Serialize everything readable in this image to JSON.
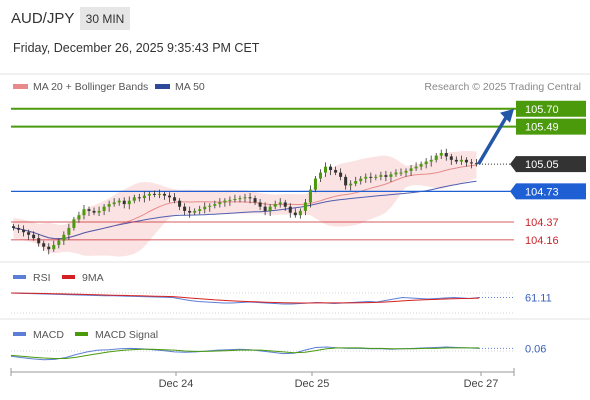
{
  "header": {
    "pair": "AUD/JPY",
    "timeframe": "30 MIN",
    "datetime": "Friday, December 26, 2025 9:35:43 PM CET"
  },
  "legend": {
    "ma20": "MA 20 + Bollinger Bands",
    "ma50": "MA 50",
    "credit": "Research © 2025 Trading Central",
    "rsi": "RSI",
    "rsi_ma": "9MA",
    "macd": "MACD",
    "macd_signal": "MACD Signal"
  },
  "colors": {
    "target": "#4a9a0c",
    "current": "#333333",
    "pivot": "#1f5fd4",
    "support": "#c8242c",
    "arrow": "#2456a8",
    "band": "#fbd9d9",
    "ma20": "#e88a8a",
    "ma50": "#4f5fb0",
    "rsi": "#5b7fd6",
    "rsi_ma": "#d42020",
    "macd": "#5b7fd6",
    "macd_signal": "#4a9a0c"
  },
  "chart_data": [
    {
      "type": "candlestick",
      "ylim": [
        103.9,
        105.85
      ],
      "x_ticks": [
        "Dec 24",
        "Dec 25",
        "Dec 27"
      ],
      "levels": [
        {
          "name": "target-2",
          "value": 105.7,
          "label": "105.70",
          "kind": "target"
        },
        {
          "name": "target-1",
          "value": 105.49,
          "label": "105.49",
          "kind": "target"
        },
        {
          "name": "current",
          "value": 105.05,
          "label": "105.05",
          "kind": "current"
        },
        {
          "name": "pivot",
          "value": 104.73,
          "label": "104.73",
          "kind": "pivot"
        },
        {
          "name": "support-1",
          "value": 104.37,
          "label": "104.37",
          "kind": "support"
        },
        {
          "name": "support-2",
          "value": 104.16,
          "label": "104.16",
          "kind": "support"
        }
      ],
      "close": [
        104.3,
        104.28,
        104.25,
        104.22,
        104.18,
        104.12,
        104.08,
        104.05,
        104.1,
        104.15,
        104.22,
        104.3,
        104.4,
        104.45,
        104.52,
        104.5,
        104.48,
        104.5,
        104.55,
        104.58,
        104.6,
        104.62,
        104.58,
        104.62,
        104.66,
        104.65,
        104.68,
        104.7,
        104.69,
        104.7,
        104.68,
        104.66,
        104.62,
        104.55,
        104.5,
        104.48,
        104.5,
        104.52,
        104.55,
        104.56,
        104.58,
        104.6,
        104.62,
        104.63,
        104.64,
        104.65,
        104.66,
        104.65,
        104.6,
        104.55,
        104.5,
        104.55,
        104.58,
        104.6,
        104.55,
        104.48,
        104.45,
        104.5,
        104.6,
        104.75,
        104.88,
        104.95,
        105.02,
        104.98,
        104.95,
        104.9,
        104.8,
        104.82,
        104.85,
        104.88,
        104.9,
        104.89,
        104.9,
        104.92,
        104.9,
        104.93,
        104.95,
        104.95,
        104.97,
        105.0,
        105.02,
        105.05,
        105.08,
        105.1,
        105.15,
        105.18,
        105.14,
        105.1,
        105.08,
        105.1,
        105.07,
        105.06,
        105.05
      ]
    },
    {
      "type": "line",
      "name": "RSI",
      "current_label": "61.11",
      "ylim": [
        30,
        80
      ],
      "grid": [
        30,
        70
      ],
      "series": [
        {
          "name": "RSI",
          "values": [
            70,
            69.5,
            69,
            68.5,
            68,
            67.5,
            67,
            66.5,
            66,
            65.5,
            65,
            64.5,
            64.5,
            64,
            63.5,
            63,
            62.5,
            62,
            61.5,
            61,
            58,
            55,
            53,
            52,
            51,
            50,
            50,
            51,
            52,
            51,
            50,
            49,
            48,
            48,
            49,
            50,
            51,
            50,
            49,
            50,
            51,
            52,
            53,
            52,
            55,
            58,
            61,
            60,
            59,
            58,
            59,
            60,
            61,
            60,
            59,
            61
          ]
        },
        {
          "name": "9MA",
          "values": [
            70,
            69.8,
            69.5,
            69.2,
            69,
            68.6,
            68.2,
            67.8,
            67.4,
            67,
            66.5,
            66,
            65.6,
            65.2,
            64.8,
            64.4,
            64,
            63.6,
            63.2,
            62.8,
            61.5,
            60,
            58.8,
            57.6,
            56.3,
            55.2,
            54.2,
            53.4,
            52.8,
            52.2,
            51.6,
            51,
            50.6,
            50.2,
            50,
            50,
            50.1,
            50.2,
            50.1,
            50.1,
            50.2,
            50.5,
            50.9,
            51.3,
            52,
            53,
            54.2,
            55.2,
            56,
            56.7,
            57.3,
            58,
            58.6,
            59,
            59.3,
            59.8
          ]
        }
      ]
    },
    {
      "type": "line",
      "name": "MACD",
      "current_label": "0.06",
      "ylim": [
        -0.25,
        0.25
      ],
      "grid": [
        0
      ],
      "series": [
        {
          "name": "MACD",
          "values": [
            -0.12,
            -0.15,
            -0.18,
            -0.2,
            -0.19,
            -0.15,
            -0.08,
            -0.02,
            0.02,
            0.03,
            0.05,
            0.06,
            0.05,
            0.03,
            0.01,
            -0.02,
            -0.03,
            -0.02,
            0.0,
            0.02,
            0.03,
            0.04,
            0.03,
            0.0,
            -0.03,
            -0.06,
            -0.05,
            0.02,
            0.08,
            0.09,
            0.07,
            0.06,
            0.06,
            0.05,
            0.05,
            0.04,
            0.05,
            0.06,
            0.07,
            0.08,
            0.09,
            0.08,
            0.07,
            0.06
          ]
        },
        {
          "name": "MACD Signal",
          "values": [
            -0.1,
            -0.12,
            -0.14,
            -0.16,
            -0.17,
            -0.17,
            -0.14,
            -0.1,
            -0.06,
            -0.02,
            0.01,
            0.03,
            0.04,
            0.04,
            0.03,
            0.02,
            0.0,
            -0.01,
            -0.01,
            0.0,
            0.01,
            0.02,
            0.02,
            0.02,
            0.0,
            -0.02,
            -0.04,
            -0.03,
            0.01,
            0.05,
            0.07,
            0.07,
            0.07,
            0.06,
            0.06,
            0.05,
            0.05,
            0.05,
            0.06,
            0.06,
            0.07,
            0.07,
            0.07,
            0.07
          ]
        }
      ]
    }
  ]
}
